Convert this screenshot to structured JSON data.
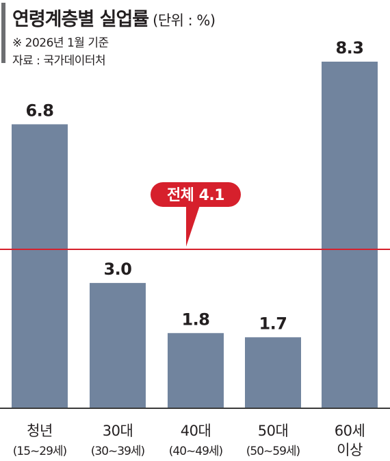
{
  "header": {
    "title": "연령계층별 실업률",
    "unit": "(단위 : %)",
    "basis": "※ 2026년 1월 기준",
    "source": "자료 : 국가데이터처"
  },
  "colors": {
    "bar": "#71849e",
    "average_line": "#d6202c",
    "text": "#231f20"
  },
  "chart_data": {
    "type": "bar",
    "title": "연령계층별 실업률",
    "ylabel": "",
    "xlabel": "",
    "categories": [
      {
        "line1": "청년",
        "line2": "(15~29세)"
      },
      {
        "line1": "30대",
        "line2": "(30~39세)"
      },
      {
        "line1": "40대",
        "line2": "(40~49세)"
      },
      {
        "line1": "50대",
        "line2": "(50~59세)"
      },
      {
        "line1": "60세",
        "line2": "이상"
      }
    ],
    "values": [
      6.8,
      3.0,
      1.8,
      1.7,
      8.3
    ],
    "value_labels": [
      "6.8",
      "3.0",
      "1.8",
      "1.7",
      "8.3"
    ],
    "ylim": [
      0,
      8.3
    ],
    "reference_line": {
      "label": "전체 4.1",
      "value": 4.1
    },
    "grid": false,
    "legend": "none"
  }
}
